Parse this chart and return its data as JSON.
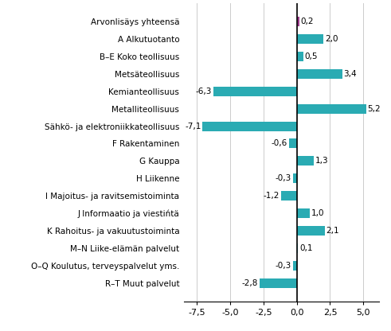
{
  "categories": [
    "R–T Muut palvelut",
    "O–Q Koulutus, terveyspalvelut yms.",
    "M–N Liike-elämän palvelut",
    "K Rahoitus- ja vakuutustoiminta",
    "J Informaatio ja viestińtä",
    "I Majoitus- ja ravitsemistoiminta",
    "H Liikenne",
    "G Kauppa",
    "F Rakentaminen",
    "Sähkö- ja elektroniikkateollisuus",
    "Metalliteollisuus",
    "Kemianteollisuus",
    "Metsäteollisuus",
    "B–E Koko teollisuus",
    "A Alkutuotanto",
    "Arvonlisäys yhteensä"
  ],
  "values": [
    -2.8,
    -0.3,
    0.1,
    2.1,
    1.0,
    -1.2,
    -0.3,
    1.3,
    -0.6,
    -7.1,
    5.2,
    -6.3,
    3.4,
    0.5,
    2.0,
    0.2
  ],
  "teal_color": "#2aabb3",
  "purple_color": "#9b3a8a",
  "xlim": [
    -8.5,
    6.2
  ],
  "xticks": [
    -7.5,
    -5.0,
    -2.5,
    0.0,
    2.5,
    5.0
  ],
  "xtick_labels": [
    "-7,5",
    "-5,0",
    "-2,5",
    "0,0",
    "2,5",
    "5,0"
  ],
  "bar_height": 0.55,
  "label_fontsize": 7.5,
  "tick_fontsize": 8.0,
  "value_fontsize": 7.5,
  "grid_color": "#cccccc",
  "bg_color": "#ffffff"
}
